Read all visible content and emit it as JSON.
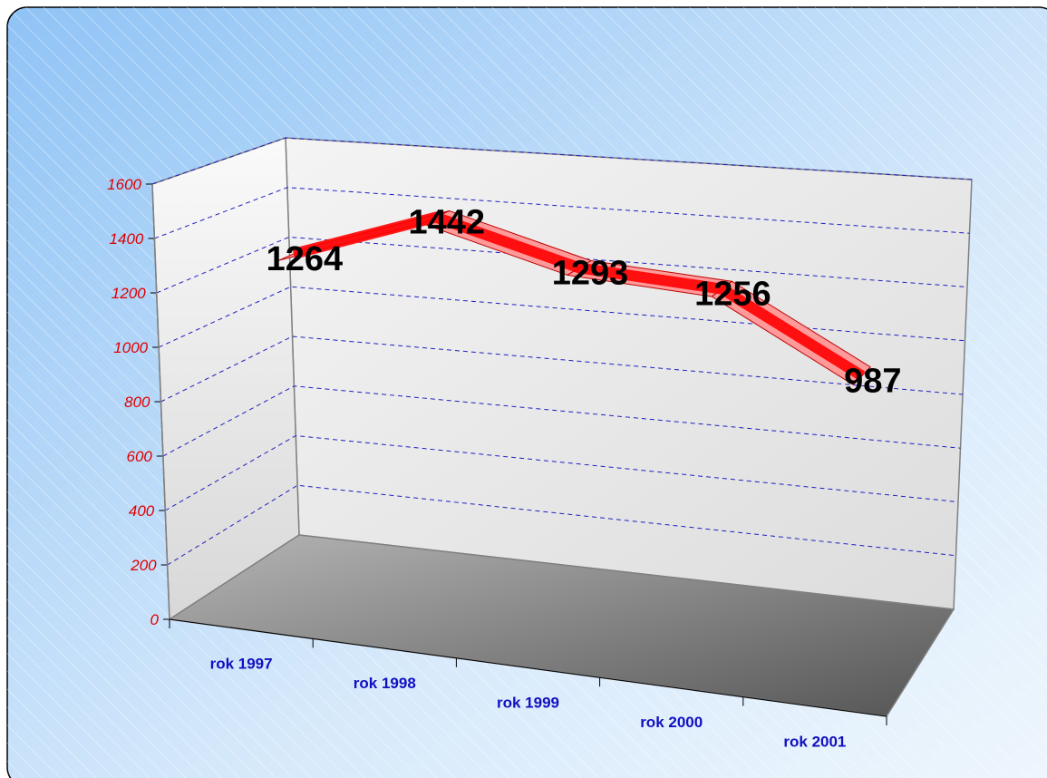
{
  "chart_data": {
    "type": "line3d",
    "categories": [
      "rok 1997",
      "rok 1998",
      "rok 1999",
      "rok 2000",
      "rok 2001"
    ],
    "values": [
      1264,
      1442,
      1293,
      1256,
      987
    ],
    "color": "#ff0000",
    "ylim": [
      0,
      1600
    ],
    "yticks": [
      0,
      200,
      400,
      600,
      800,
      1000,
      1200,
      1400,
      1600
    ],
    "grid": true
  }
}
